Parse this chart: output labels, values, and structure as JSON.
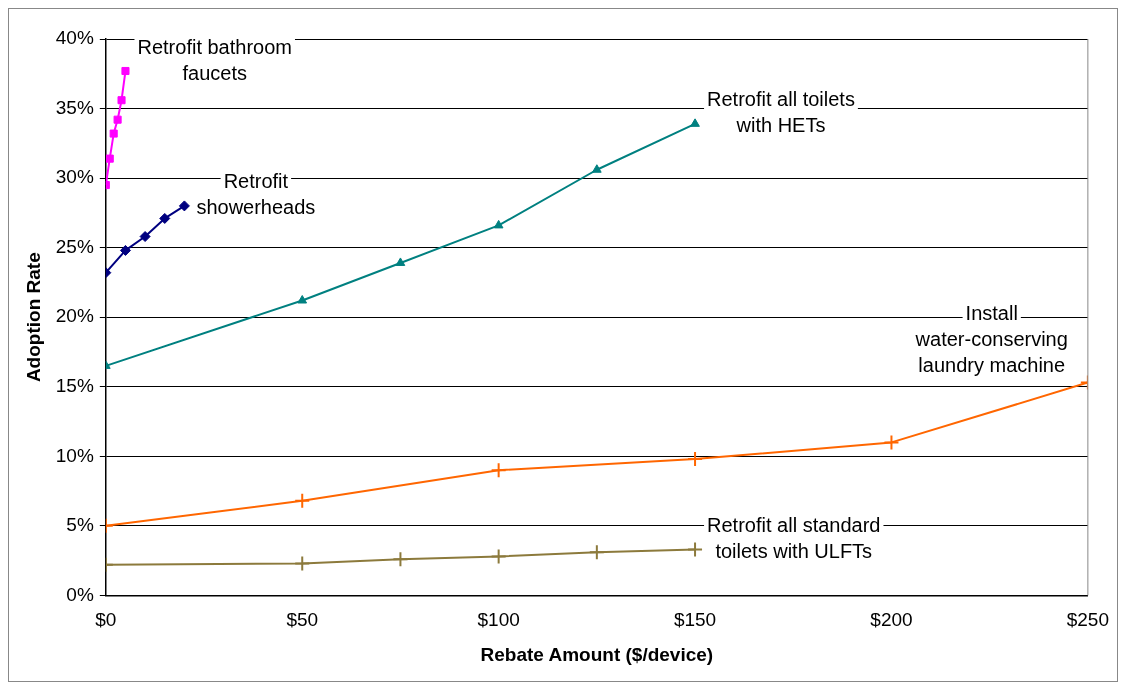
{
  "chart_data": {
    "type": "line",
    "xlabel": "Rebate Amount ($/device)",
    "ylabel": "Adoption Rate",
    "xlim": [
      0,
      250
    ],
    "xticks": [
      {
        "value": 0,
        "label": "$0"
      },
      {
        "value": 50,
        "label": "$50"
      },
      {
        "value": 100,
        "label": "$100"
      },
      {
        "value": 150,
        "label": "$150"
      },
      {
        "value": 200,
        "label": "$200"
      },
      {
        "value": 250,
        "label": "$250"
      }
    ],
    "ylim": [
      0,
      40
    ],
    "yticks": [
      {
        "value": 0,
        "label": "0%"
      },
      {
        "value": 5,
        "label": "5%"
      },
      {
        "value": 10,
        "label": "10%"
      },
      {
        "value": 15,
        "label": "15%"
      },
      {
        "value": 20,
        "label": "20%"
      },
      {
        "value": 25,
        "label": "25%"
      },
      {
        "value": 30,
        "label": "30%"
      },
      {
        "value": 35,
        "label": "35%"
      },
      {
        "value": 40,
        "label": "40%"
      }
    ],
    "grid": "y",
    "legend": false,
    "series": [
      {
        "name": "Retrofit bathroom faucets",
        "color": "#ff00ff",
        "marker": "square",
        "x": [
          0,
          1,
          2,
          3,
          4,
          5
        ],
        "values": [
          29.5,
          31.4,
          33.2,
          34.2,
          35.6,
          37.7
        ]
      },
      {
        "name": "Retrofit showerheads",
        "color": "#000080",
        "marker": "diamond",
        "x": [
          0,
          5,
          10,
          15,
          20
        ],
        "values": [
          23.2,
          24.8,
          25.8,
          27.1,
          28.0
        ]
      },
      {
        "name": "Retrofit all toilets with HETs",
        "color": "#008080",
        "marker": "triangle",
        "x": [
          0,
          50,
          75,
          100,
          125,
          150
        ],
        "values": [
          16.5,
          21.2,
          23.9,
          26.6,
          30.6,
          33.9
        ]
      },
      {
        "name": "Install water-conserving laundry machine",
        "color": "#ff6600",
        "marker": "cross",
        "x": [
          0,
          50,
          100,
          150,
          200,
          250
        ],
        "values": [
          5.0,
          6.8,
          9.0,
          9.8,
          11.0,
          15.3
        ]
      },
      {
        "name": "Retrofit all standard toilets with ULFTs",
        "color": "#8c7a3c",
        "marker": "cross",
        "x": [
          0,
          50,
          75,
          100,
          125,
          150
        ],
        "values": [
          2.2,
          2.3,
          2.6,
          2.8,
          3.1,
          3.3
        ]
      }
    ]
  }
}
